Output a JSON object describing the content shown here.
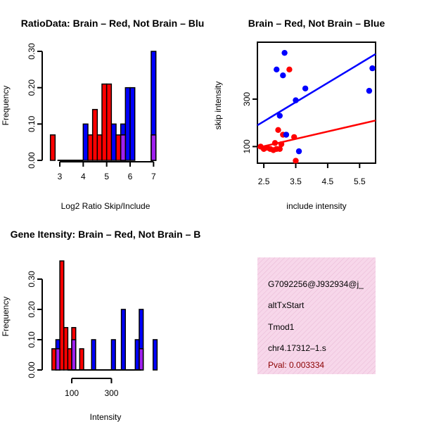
{
  "colors": {
    "brain": "#ff0000",
    "notbrain": "#0000ff",
    "overlap": "#a020f0",
    "panel_bg": "#f7d7ea",
    "pval": "#8b0000"
  },
  "chart_data": [
    {
      "id": "p1",
      "type": "bar",
      "title": "RatioData: Brain – Red, Not Brain – Blu",
      "xlabel": "Log2 Ratio Skip/Include",
      "ylabel": "Frequency",
      "xticks": [
        "3",
        "4",
        "5",
        "6",
        "7"
      ],
      "xtick_values": [
        3,
        4,
        5,
        6,
        7
      ],
      "yticks": [
        "0.00",
        "0.10",
        "0.20",
        "0.30"
      ],
      "ytick_values": [
        0,
        0.1,
        0.2,
        0.3
      ],
      "xlim": [
        2.55,
        7.35
      ],
      "ylim": [
        0,
        0.3
      ],
      "bin_width": 0.2,
      "red_bars": [
        {
          "x": 2.6,
          "h": 0.07
        },
        {
          "x": 4.2,
          "h": 0.07
        },
        {
          "x": 4.4,
          "h": 0.14
        },
        {
          "x": 4.6,
          "h": 0.07
        },
        {
          "x": 4.8,
          "h": 0.21
        },
        {
          "x": 5.0,
          "h": 0.21
        },
        {
          "x": 5.4,
          "h": 0.07
        },
        {
          "x": 5.6,
          "h": 0.07
        },
        {
          "x": 6.9,
          "h": 0.07
        }
      ],
      "blue_bars": [
        {
          "x": 4.0,
          "h": 0.1
        },
        {
          "x": 5.2,
          "h": 0.1
        },
        {
          "x": 5.6,
          "h": 0.1
        },
        {
          "x": 5.8,
          "h": 0.2
        },
        {
          "x": 6.0,
          "h": 0.2
        },
        {
          "x": 6.9,
          "h": 0.3
        }
      ],
      "overlap_bars": [
        {
          "x": 5.6,
          "h": 0.07
        },
        {
          "x": 6.9,
          "h": 0.07
        }
      ],
      "baseline": [
        2.9,
        4.0
      ]
    },
    {
      "id": "p2",
      "type": "scatter",
      "title": "Brain – Red, Not Brain – Blue",
      "xlabel": "include intensity",
      "ylabel": "skip intensity",
      "xticks": [
        "2.5",
        "3.5",
        "4.5",
        "5.5"
      ],
      "xtick_values": [
        2.5,
        3.5,
        4.5,
        5.5
      ],
      "yticks": [
        "100",
        "300"
      ],
      "ytick_values": [
        100,
        300
      ],
      "xlim": [
        2.3,
        6.0
      ],
      "ylim": [
        30,
        540
      ],
      "red_points": [
        [
          2.4,
          100
        ],
        [
          2.5,
          90
        ],
        [
          2.6,
          95
        ],
        [
          2.7,
          90
        ],
        [
          2.8,
          85
        ],
        [
          2.85,
          115
        ],
        [
          2.9,
          90
        ],
        [
          2.95,
          170
        ],
        [
          3.0,
          90
        ],
        [
          3.05,
          110
        ],
        [
          3.1,
          150
        ],
        [
          3.2,
          150
        ],
        [
          3.3,
          425
        ],
        [
          3.45,
          140
        ],
        [
          3.5,
          40
        ]
      ],
      "blue_points": [
        [
          2.9,
          425
        ],
        [
          3.0,
          230
        ],
        [
          3.1,
          400
        ],
        [
          3.15,
          495
        ],
        [
          3.2,
          150
        ],
        [
          3.5,
          295
        ],
        [
          3.6,
          80
        ],
        [
          3.8,
          345
        ],
        [
          5.8,
          335
        ],
        [
          5.9,
          430
        ]
      ],
      "red_line": [
        [
          2.3,
          95
        ],
        [
          6.0,
          210
        ]
      ],
      "blue_line": [
        [
          2.3,
          190
        ],
        [
          6.0,
          490
        ]
      ]
    },
    {
      "id": "p3",
      "type": "bar",
      "title": "Gene Itensity: Brain – Red, Not Brain – B",
      "xlabel": "Intensity",
      "ylabel": "Frequency",
      "xticks": [
        "100",
        "300"
      ],
      "xtick_values": [
        100,
        300
      ],
      "yticks": [
        "0.00",
        "0.10",
        "0.20",
        "0.30"
      ],
      "ytick_values": [
        0,
        0.1,
        0.2,
        0.3
      ],
      "xlim": [
        -10,
        550
      ],
      "ylim": [
        0,
        0.36
      ],
      "bin_width": 20,
      "red_bars": [
        {
          "x": 0,
          "h": 0.07
        },
        {
          "x": 40,
          "h": 0.36
        },
        {
          "x": 60,
          "h": 0.14
        },
        {
          "x": 80,
          "h": 0.07
        },
        {
          "x": 100,
          "h": 0.14
        },
        {
          "x": 140,
          "h": 0.07
        }
      ],
      "blue_bars": [
        {
          "x": 20,
          "h": 0.1
        },
        {
          "x": 100,
          "h": 0.1
        },
        {
          "x": 200,
          "h": 0.1
        },
        {
          "x": 300,
          "h": 0.1
        },
        {
          "x": 350,
          "h": 0.2
        },
        {
          "x": 420,
          "h": 0.1
        },
        {
          "x": 440,
          "h": 0.2
        },
        {
          "x": 510,
          "h": 0.1
        }
      ],
      "overlap_bars": [
        {
          "x": 20,
          "h": 0.07
        },
        {
          "x": 100,
          "h": 0.1
        },
        {
          "x": 440,
          "h": 0.07
        }
      ],
      "baseline": [
        80,
        450
      ]
    }
  ],
  "info_panel": {
    "id_line": "G7092256@J932934@j_",
    "event_type": "altTxStart",
    "gene": "Tmod1",
    "locus": "chr4.17312–1.s",
    "pval": "Pval: 0.003334"
  }
}
